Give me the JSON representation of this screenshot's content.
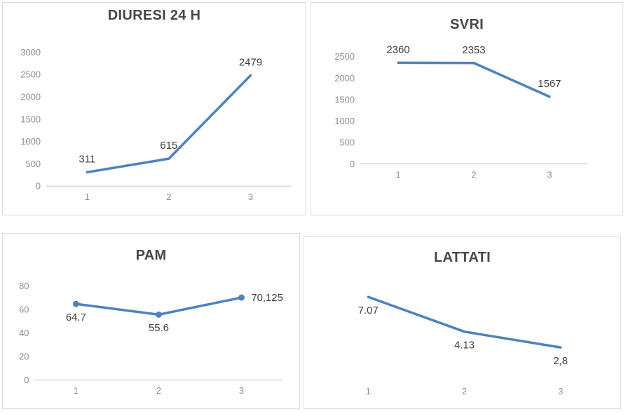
{
  "colors": {
    "line": "#4f81bd",
    "axis": "#d6d6d6",
    "tick_label": "#8c8c8c",
    "data_label": "#3d3d3d",
    "title": "#474747",
    "panel_border": "#d9d9d9",
    "background": "#ffffff"
  },
  "chart_data": [
    {
      "id": "diuresi-24h",
      "type": "line",
      "title": "DIURESI 24 H",
      "xlabel": "",
      "ylabel": "",
      "categories": [
        "1",
        "2",
        "3"
      ],
      "values": [
        311,
        615,
        2479
      ],
      "point_labels": [
        "311",
        "615",
        "2479"
      ],
      "label_positions": [
        "above",
        "above",
        "above"
      ],
      "y_ticks": [
        0,
        500,
        1000,
        1500,
        2000,
        2500,
        3000
      ],
      "ylim": [
        0,
        3200
      ],
      "axis_line": true,
      "markers": false,
      "grid": false,
      "legend": "none",
      "margins": {
        "l": 62,
        "r": 20,
        "t": 58,
        "b": 41
      }
    },
    {
      "id": "svri",
      "type": "line",
      "title": "SVRI",
      "xlabel": "",
      "ylabel": "",
      "categories": [
        "1",
        "2",
        "3"
      ],
      "values": [
        2360,
        2353,
        1567
      ],
      "point_labels": [
        "2360",
        "2353",
        "1567"
      ],
      "label_positions": [
        "above",
        "above",
        "above"
      ],
      "y_ticks": [
        0,
        500,
        1000,
        1500,
        2000,
        2500
      ],
      "ylim": [
        0,
        2700
      ],
      "axis_line": true,
      "markers": false,
      "grid": false,
      "legend": "none",
      "margins": {
        "l": 70,
        "r": 50,
        "t": 65,
        "b": 73
      }
    },
    {
      "id": "pam",
      "type": "line",
      "title": "PAM",
      "xlabel": "",
      "ylabel": "",
      "categories": [
        "1",
        "2",
        "3"
      ],
      "values": [
        64.7,
        55.6,
        70.125
      ],
      "point_labels": [
        "64.7",
        "55.6",
        "70,125"
      ],
      "label_positions": [
        "below",
        "below",
        "right"
      ],
      "y_ticks": [
        0,
        20,
        40,
        60,
        80
      ],
      "ylim": [
        0,
        89
      ],
      "axis_line": true,
      "markers": true,
      "grid": false,
      "legend": "none",
      "margins": {
        "l": 45,
        "r": 23,
        "t": 60,
        "b": 41
      }
    },
    {
      "id": "lattati",
      "type": "line",
      "title": "LATTATI",
      "xlabel": "",
      "ylabel": "",
      "categories": [
        "1",
        "2",
        "3"
      ],
      "values": [
        7.07,
        4.13,
        2.8
      ],
      "point_labels": [
        "7.07",
        "4.13",
        "2,8"
      ],
      "label_positions": [
        "below",
        "below",
        "below"
      ],
      "y_ticks": [],
      "ylim": [
        0,
        8
      ],
      "axis_line": false,
      "markers": false,
      "grid": false,
      "legend": "none",
      "margins": {
        "l": 22,
        "r": 16,
        "t": 70,
        "b": 40
      }
    }
  ]
}
